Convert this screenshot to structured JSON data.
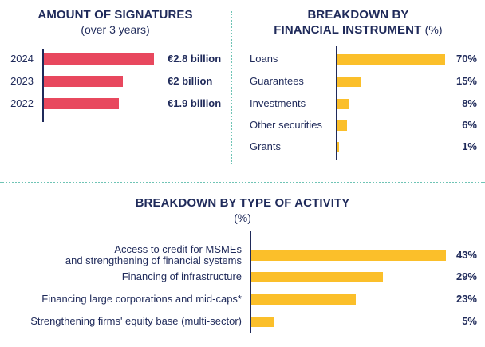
{
  "chart_data": [
    {
      "type": "bar",
      "orientation": "horizontal",
      "title": "AMOUNT OF SIGNATURES",
      "subtitle": "(over 3 years)",
      "categories": [
        "2024",
        "2023",
        "2022"
      ],
      "values": [
        2.8,
        2.0,
        1.9
      ],
      "value_labels": [
        "€2.8 billion",
        "€2 billion",
        "€1.9 billion"
      ],
      "xlim": [
        0,
        3.3
      ],
      "color": "#e8485e"
    },
    {
      "type": "bar",
      "orientation": "horizontal",
      "title_line1": "BREAKDOWN BY",
      "title_line2": "FINANCIAL INSTRUMENT",
      "unit": "(%)",
      "categories": [
        "Loans",
        "Guarantees",
        "Investments",
        "Other securities",
        "Grants"
      ],
      "values": [
        70,
        15,
        8,
        6,
        1
      ],
      "value_labels": [
        "70%",
        "15%",
        "8%",
        "6%",
        "1%"
      ],
      "xlim": [
        0,
        70
      ],
      "color": "#fbbf2a"
    },
    {
      "type": "bar",
      "orientation": "horizontal",
      "title": "BREAKDOWN BY TYPE OF ACTIVITY",
      "subtitle": "(%)",
      "categories": [
        "Access to credit for MSMEs\nand strengthening of financial systems",
        "Financing of infrastructure",
        "Financing large corporations and mid-caps*",
        "Strengthening firms' equity base (multi-sector)"
      ],
      "values": [
        43,
        29,
        23,
        5
      ],
      "value_labels": [
        "43%",
        "29%",
        "23%",
        "5%"
      ],
      "xlim": [
        0,
        43
      ],
      "color": "#fbbf2a"
    }
  ]
}
